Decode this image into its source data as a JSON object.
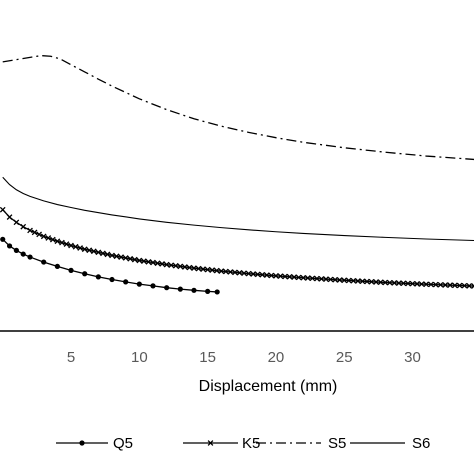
{
  "chart_data": {
    "type": "line",
    "title": "",
    "xlabel": "Displacement (mm)",
    "ylabel": "",
    "xlim": [
      -0.2,
      34.5
    ],
    "x_ticks": [
      5,
      10,
      15,
      20,
      25,
      30
    ],
    "x_tick_labels": [
      "5",
      "10",
      "15",
      "20",
      "25",
      "30"
    ],
    "grid": false,
    "legend_position": "bottom",
    "colors": {
      "series": "#000000",
      "axis": "#000000",
      "tick_text": "#595959"
    },
    "series": [
      {
        "name": "Q5",
        "style": "line-with-dots",
        "x": [
          0.0,
          0.5,
          1.0,
          1.5,
          2.0,
          3.0,
          4.0,
          5.0,
          6.0,
          7.0,
          8.0,
          9.0,
          10.0,
          11.0,
          12.0,
          13.0,
          14.0,
          15.0,
          15.7
        ],
        "y": [
          0.62,
          0.575,
          0.545,
          0.52,
          0.5,
          0.466,
          0.437,
          0.41,
          0.387,
          0.366,
          0.348,
          0.332,
          0.317,
          0.305,
          0.293,
          0.283,
          0.275,
          0.268,
          0.264
        ]
      },
      {
        "name": "K5",
        "style": "line-with-crosses",
        "x": [
          0.0,
          0.5,
          1.0,
          1.5,
          2.0,
          3.0,
          4.0,
          5.0,
          6.0,
          8.0,
          10.0,
          12.0,
          14.0,
          16.0,
          18.0,
          20.0,
          22.0,
          25.0,
          28.0,
          31.0,
          34.5
        ],
        "y": [
          0.82,
          0.77,
          0.735,
          0.705,
          0.68,
          0.64,
          0.607,
          0.578,
          0.553,
          0.511,
          0.477,
          0.449,
          0.425,
          0.405,
          0.388,
          0.373,
          0.36,
          0.343,
          0.328,
          0.316,
          0.304
        ]
      },
      {
        "name": "S5",
        "style": "dash-dot",
        "x": [
          0.0,
          1.0,
          2.0,
          2.8,
          3.5,
          4.2,
          5.0,
          6.0,
          7.0,
          8.0,
          10.0,
          12.0,
          14.0,
          16.0,
          18.0,
          20.0,
          22.0,
          25.0,
          28.0,
          31.0,
          34.5
        ],
        "y": [
          1.82,
          1.835,
          1.85,
          1.862,
          1.858,
          1.84,
          1.8,
          1.752,
          1.703,
          1.656,
          1.57,
          1.497,
          1.435,
          1.385,
          1.343,
          1.307,
          1.276,
          1.239,
          1.209,
          1.183,
          1.16
        ]
      },
      {
        "name": "S6",
        "style": "solid",
        "x": [
          0.0,
          0.5,
          1.0,
          1.5,
          2.0,
          3.0,
          4.0,
          5.0,
          6.0,
          8.0,
          10.0,
          12.0,
          14.0,
          16.0,
          18.0,
          20.0,
          22.0,
          25.0,
          28.0,
          31.0,
          34.5
        ],
        "y": [
          1.04,
          0.99,
          0.955,
          0.93,
          0.91,
          0.88,
          0.855,
          0.835,
          0.816,
          0.785,
          0.758,
          0.735,
          0.716,
          0.699,
          0.684,
          0.671,
          0.66,
          0.645,
          0.633,
          0.622,
          0.612
        ]
      }
    ]
  }
}
